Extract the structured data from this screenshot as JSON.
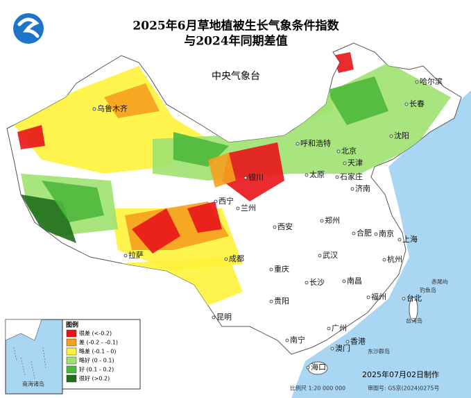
{
  "header": {
    "title_line1": "2025年6月草地植被生长气象条件指数",
    "title_line2": "与2024年同期差值",
    "issuer": "中央气象台"
  },
  "legend": {
    "title": "图例",
    "items": [
      {
        "label": "很差 (<-0.2)",
        "color": "#e8141a"
      },
      {
        "label": "差 (-0.2 - -0.1)",
        "color": "#f5a01e"
      },
      {
        "label": "略差 (-0.1 - 0)",
        "color": "#fff23a"
      },
      {
        "label": "略好 (0 - 0.1)",
        "color": "#9ee270"
      },
      {
        "label": "好 (0.1 - 0.2)",
        "color": "#4cb83c"
      },
      {
        "label": "很好 (>0.2)",
        "color": "#1f6e1c"
      }
    ]
  },
  "map": {
    "cities": [
      "哈尔滨",
      "长春",
      "沈阳",
      "乌鲁木齐",
      "呼和浩特",
      "北京",
      "天津",
      "石家庄",
      "太原",
      "济南",
      "银川",
      "兰州",
      "西宁",
      "郑州",
      "西安",
      "合肥",
      "南京",
      "上海",
      "拉萨",
      "成都",
      "武汉",
      "杭州",
      "重庆",
      "长沙",
      "南昌",
      "福州",
      "台北",
      "贵阳",
      "昆明",
      "南宁",
      "广州",
      "香港",
      "澳门",
      "海口"
    ],
    "island_labels": [
      "赤尾屿",
      "钓鱼岛",
      "台湾岛",
      "东沙群岛"
    ],
    "inset_label": "南海诸岛"
  },
  "footer": {
    "date": "2025年07月02日制作",
    "scale": "比例尺 1:20 000 000",
    "review_number": "审图号: GS京(2024)0275号"
  }
}
